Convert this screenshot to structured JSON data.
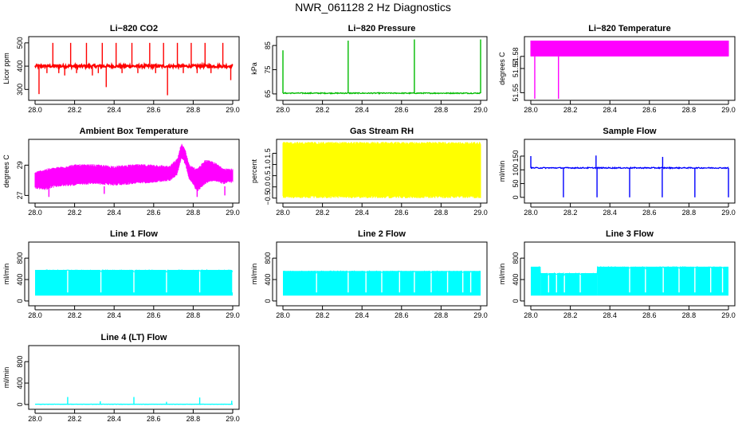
{
  "title": "NWR_061128  2 Hz Diagnostics",
  "chart_data": [
    {
      "id": "co2",
      "type": "line",
      "title": "Li−820 CO2",
      "ylabel": "Licor ppm",
      "color": "#ff0000",
      "xlim": [
        28.0,
        29.0
      ],
      "ylim": [
        260,
        520
      ],
      "xticks": [
        28.0,
        28.2,
        28.4,
        28.6,
        28.8,
        29.0
      ],
      "xtick_labels": [
        "28.0",
        "28.2",
        "28.4",
        "28.6",
        "28.8",
        "29.0"
      ],
      "yticks": [
        300,
        400,
        500
      ],
      "ytick_labels": [
        "300",
        "400",
        "500"
      ],
      "series": [
        {
          "name": "CO2",
          "baseline": 400,
          "noise": 6,
          "band": false,
          "spikes": [
            [
              28.02,
              280
            ],
            [
              28.06,
              370
            ],
            [
              28.09,
              500
            ],
            [
              28.12,
              370
            ],
            [
              28.15,
              360
            ],
            [
              28.18,
              500
            ],
            [
              28.21,
              370
            ],
            [
              28.26,
              500
            ],
            [
              28.29,
              360
            ],
            [
              28.32,
              370
            ],
            [
              28.34,
              500
            ],
            [
              28.36,
              310
            ],
            [
              28.41,
              500
            ],
            [
              28.44,
              370
            ],
            [
              28.49,
              500
            ],
            [
              28.52,
              370
            ],
            [
              28.58,
              500
            ],
            [
              28.61,
              370
            ],
            [
              28.65,
              500
            ],
            [
              28.67,
              275
            ],
            [
              28.72,
              500
            ],
            [
              28.75,
              370
            ],
            [
              28.79,
              500
            ],
            [
              28.82,
              370
            ],
            [
              28.86,
              500
            ],
            [
              28.89,
              370
            ],
            [
              28.95,
              500
            ],
            [
              28.99,
              340
            ]
          ]
        }
      ]
    },
    {
      "id": "pressure",
      "type": "line",
      "title": "Li−820 Pressure",
      "ylabel": "kPa",
      "color": "#00bb00",
      "xlim": [
        28.0,
        29.0
      ],
      "ylim": [
        63,
        88
      ],
      "xticks": [
        28.0,
        28.2,
        28.4,
        28.6,
        28.8,
        29.0
      ],
      "xtick_labels": [
        "28.0",
        "28.2",
        "28.4",
        "28.6",
        "28.8",
        "29.0"
      ],
      "yticks": [
        65,
        75,
        85
      ],
      "ytick_labels": [
        "65",
        "75",
        "85"
      ],
      "series": [
        {
          "name": "Pressure",
          "baseline": 65.3,
          "noise": 0.2,
          "band": false,
          "spikes": [
            [
              28.0,
              83
            ],
            [
              28.33,
              87
            ],
            [
              28.665,
              87.5
            ],
            [
              29.0,
              87.5
            ]
          ]
        }
      ]
    },
    {
      "id": "licor-temp",
      "type": "area",
      "title": "Li−820 Temperature",
      "ylabel": "degrees C",
      "color": "#ff00ff",
      "xlim": [
        28.0,
        29.0
      ],
      "ylim": [
        51.545,
        51.595
      ],
      "xticks": [
        28.0,
        28.2,
        28.4,
        28.6,
        28.8,
        29.0
      ],
      "xtick_labels": [
        "28.0",
        "28.2",
        "28.4",
        "28.6",
        "28.8",
        "29.0"
      ],
      "yticks": [
        51.55,
        51.57,
        51.58
      ],
      "ytick_labels": [
        "51.55",
        "51.57",
        "51.58"
      ],
      "series": [
        {
          "name": "Temperature",
          "low": 51.58,
          "high": 51.593,
          "band": true,
          "spikes": [
            [
              28.02,
              51.545
            ],
            [
              28.14,
              51.545
            ]
          ]
        }
      ]
    },
    {
      "id": "box-temp",
      "type": "line",
      "title": "Ambient Box Temperature",
      "ylabel": "degrees C",
      "color": "#ff00ff",
      "xlim": [
        28.0,
        29.0
      ],
      "ylim": [
        26.6,
        30.6
      ],
      "xticks": [
        28.0,
        28.2,
        28.4,
        28.6,
        28.8,
        29.0
      ],
      "xtick_labels": [
        "28.0",
        "28.2",
        "28.4",
        "28.6",
        "28.8",
        "29.0"
      ],
      "yticks": [
        27,
        29
      ],
      "ytick_labels": [
        "27",
        "29"
      ],
      "series": [
        {
          "name": "Box temperature",
          "band": true,
          "x": [
            28.0,
            28.05,
            28.1,
            28.2,
            28.3,
            28.4,
            28.5,
            28.6,
            28.68,
            28.72,
            28.74,
            28.76,
            28.78,
            28.82,
            28.86,
            28.9,
            28.95,
            29.0
          ],
          "low": [
            27.6,
            27.5,
            27.7,
            27.8,
            27.9,
            27.8,
            27.9,
            28.0,
            28.1,
            28.5,
            29.6,
            29.2,
            28.2,
            27.4,
            27.9,
            28.1,
            27.9,
            28.0
          ],
          "high": [
            28.4,
            28.6,
            28.7,
            28.9,
            28.9,
            28.8,
            28.9,
            28.9,
            28.8,
            29.3,
            30.3,
            29.9,
            28.9,
            28.6,
            29.2,
            29.1,
            28.7,
            28.6
          ],
          "spikes": [
            [
              28.07,
              26.9
            ],
            [
              28.35,
              27.1
            ],
            [
              28.82,
              26.9
            ],
            [
              28.96,
              27.0
            ]
          ]
        }
      ]
    },
    {
      "id": "rh",
      "type": "area",
      "title": "Gas Stream RH",
      "ylabel": "percent",
      "color": "#ffff00",
      "xlim": [
        28.0,
        29.0
      ],
      "ylim": [
        -0.65,
        2.05
      ],
      "xticks": [
        28.0,
        28.2,
        28.4,
        28.6,
        28.8,
        29.0
      ],
      "xtick_labels": [
        "28.0",
        "28.2",
        "28.4",
        "28.6",
        "28.8",
        "29.0"
      ],
      "yticks": [
        -0.5,
        0.0,
        0.5,
        1.0,
        1.5
      ],
      "ytick_labels": [
        "−0.5",
        "0.0",
        "0.5",
        "1.0",
        "1.5"
      ],
      "series": [
        {
          "name": "RH",
          "low": -0.4,
          "high": 1.9,
          "band": true,
          "spikes": []
        }
      ]
    },
    {
      "id": "sample-flow",
      "type": "line",
      "title": "Sample Flow",
      "ylabel": "ml/min",
      "color": "#0000ff",
      "xlim": [
        28.0,
        29.0
      ],
      "ylim": [
        -15,
        205
      ],
      "xticks": [
        28.0,
        28.2,
        28.4,
        28.6,
        28.8,
        29.0
      ],
      "xtick_labels": [
        "28.0",
        "28.2",
        "28.4",
        "28.6",
        "28.8",
        "29.0"
      ],
      "yticks": [
        0,
        50,
        100,
        150
      ],
      "ytick_labels": [
        "0",
        "50",
        "100",
        "150"
      ],
      "series": [
        {
          "name": "Flow",
          "baseline": 107,
          "noise": 2,
          "band": false,
          "spikes": [
            [
              28.0,
              150
            ],
            [
              28.165,
              0
            ],
            [
              28.33,
              152
            ],
            [
              28.335,
              0
            ],
            [
              28.5,
              0
            ],
            [
              28.665,
              0
            ],
            [
              28.667,
              147
            ],
            [
              28.83,
              0
            ],
            [
              29.0,
              0
            ]
          ]
        }
      ]
    },
    {
      "id": "line1",
      "type": "area",
      "title": "Line 1 Flow",
      "ylabel": "ml/min",
      "color": "#00ffff",
      "xlim": [
        28.0,
        29.0
      ],
      "ylim": [
        -60,
        1070
      ],
      "xticks": [
        28.0,
        28.2,
        28.4,
        28.6,
        28.8,
        29.0
      ],
      "xtick_labels": [
        "28.0",
        "28.2",
        "28.4",
        "28.6",
        "28.8",
        "29.0"
      ],
      "yticks": [
        0,
        400,
        800
      ],
      "ytick_labels": [
        "0",
        "400",
        "800"
      ],
      "series": [
        {
          "name": "Flow",
          "band": true,
          "low": 100,
          "high": 580,
          "gaps": [
            28.165,
            28.333,
            28.5,
            28.665,
            28.833,
            29.0
          ]
        }
      ]
    },
    {
      "id": "line2",
      "type": "area",
      "title": "Line 2 Flow",
      "ylabel": "ml/min",
      "color": "#00ffff",
      "xlim": [
        28.0,
        29.0
      ],
      "ylim": [
        -60,
        1070
      ],
      "xticks": [
        28.0,
        28.2,
        28.4,
        28.6,
        28.8,
        29.0
      ],
      "xtick_labels": [
        "28.0",
        "28.2",
        "28.4",
        "28.6",
        "28.8",
        "29.0"
      ],
      "yticks": [
        0,
        400,
        800
      ],
      "ytick_labels": [
        "0",
        "400",
        "800"
      ],
      "series": [
        {
          "name": "Flow",
          "band": true,
          "low": 100,
          "high": 560,
          "gaps": [
            28.17,
            28.33,
            28.42,
            28.5,
            28.59,
            28.665,
            28.75,
            28.833,
            28.91,
            28.95
          ]
        }
      ]
    },
    {
      "id": "line3",
      "type": "area",
      "title": "Line 3 Flow",
      "ylabel": "ml/min",
      "color": "#00ffff",
      "xlim": [
        28.0,
        29.0
      ],
      "ylim": [
        -60,
        1070
      ],
      "xticks": [
        28.0,
        28.2,
        28.4,
        28.6,
        28.8,
        29.0
      ],
      "xtick_labels": [
        "28.0",
        "28.2",
        "28.4",
        "28.6",
        "28.8",
        "29.0"
      ],
      "yticks": [
        0,
        400,
        800
      ],
      "ytick_labels": [
        "0",
        "400",
        "800"
      ],
      "series": [
        {
          "name": "Flow",
          "band": true,
          "low": 100,
          "segments": [
            [
              28.0,
              28.05,
              640
            ],
            [
              28.05,
              28.335,
              520
            ],
            [
              28.335,
              29.0,
              640
            ]
          ],
          "gaps": [
            28.09,
            28.13,
            28.17,
            28.25,
            28.5,
            28.58,
            28.67,
            28.75,
            28.83,
            28.91,
            28.97
          ]
        }
      ]
    },
    {
      "id": "line4",
      "type": "line",
      "title": "Line 4 (LT) Flow",
      "ylabel": "ml/min",
      "color": "#00ffff",
      "xlim": [
        28.0,
        29.0
      ],
      "ylim": [
        -60,
        1070
      ],
      "xticks": [
        28.0,
        28.2,
        28.4,
        28.6,
        28.8,
        29.0
      ],
      "xtick_labels": [
        "28.0",
        "28.2",
        "28.4",
        "28.6",
        "28.8",
        "29.0"
      ],
      "yticks": [
        0,
        400,
        800
      ],
      "ytick_labels": [
        "0",
        "400",
        "800"
      ],
      "series": [
        {
          "name": "Flow",
          "baseline": 5,
          "noise": 2,
          "band": false,
          "spikes": [
            [
              28.165,
              140
            ],
            [
              28.33,
              60
            ],
            [
              28.5,
              140
            ],
            [
              28.665,
              50
            ],
            [
              28.833,
              130
            ],
            [
              28.995,
              70
            ]
          ]
        }
      ]
    }
  ]
}
